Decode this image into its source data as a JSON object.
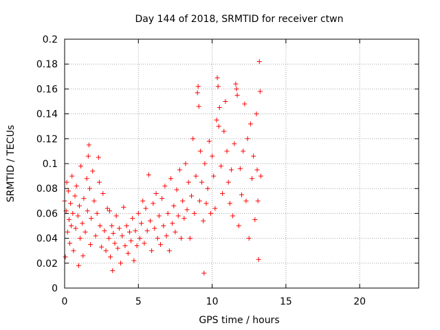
{
  "chart_data": {
    "type": "scatter",
    "title": "Day 144 of 2018, SRMTID for receiver ctwn",
    "xlabel": "GPS time / hours",
    "ylabel": "SRMTID / TECUs",
    "xlim": [
      0,
      24
    ],
    "ylim": [
      0,
      0.2
    ],
    "xticks": [
      0,
      5,
      10,
      15,
      20
    ],
    "xtick_labels": [
      "0",
      "5",
      "10",
      "15",
      "20"
    ],
    "yticks": [
      0,
      0.02,
      0.04,
      0.06,
      0.08,
      0.1,
      0.12,
      0.14,
      0.16,
      0.18,
      0.2
    ],
    "ytick_labels": [
      "0",
      "0.02",
      "0.04",
      "0.06",
      "0.08",
      "0.1",
      "0.12",
      "0.14",
      "0.16",
      "0.18",
      "0.2"
    ],
    "grid": true,
    "marker": "+",
    "color": "#ff0000",
    "series": [
      {
        "name": "SRMTID",
        "points": [
          [
            0.0,
            0.07
          ],
          [
            0.05,
            0.025
          ],
          [
            0.1,
            0.062
          ],
          [
            0.15,
            0.085
          ],
          [
            0.2,
            0.045
          ],
          [
            0.25,
            0.078
          ],
          [
            0.3,
            0.055
          ],
          [
            0.35,
            0.036
          ],
          [
            0.4,
            0.068
          ],
          [
            0.45,
            0.05
          ],
          [
            0.5,
            0.09
          ],
          [
            0.55,
            0.06
          ],
          [
            0.6,
            0.03
          ],
          [
            0.7,
            0.074
          ],
          [
            0.75,
            0.048
          ],
          [
            0.8,
            0.082
          ],
          [
            0.9,
            0.058
          ],
          [
            0.95,
            0.018
          ],
          [
            1.0,
            0.066
          ],
          [
            1.05,
            0.04
          ],
          [
            1.1,
            0.098
          ],
          [
            1.2,
            0.052
          ],
          [
            1.25,
            0.026
          ],
          [
            1.3,
            0.072
          ],
          [
            1.4,
            0.045
          ],
          [
            1.5,
            0.088
          ],
          [
            1.55,
            0.062
          ],
          [
            1.6,
            0.106
          ],
          [
            1.65,
            0.115
          ],
          [
            1.7,
            0.08
          ],
          [
            1.75,
            0.035
          ],
          [
            1.8,
            0.056
          ],
          [
            1.9,
            0.094
          ],
          [
            2.0,
            0.07
          ],
          [
            2.1,
            0.042
          ],
          [
            2.2,
            0.06
          ],
          [
            2.3,
            0.105
          ],
          [
            2.35,
            0.085
          ],
          [
            2.4,
            0.05
          ],
          [
            2.5,
            0.033
          ],
          [
            2.6,
            0.076
          ],
          [
            2.7,
            0.046
          ],
          [
            2.8,
            0.03
          ],
          [
            2.9,
            0.064
          ],
          [
            3.0,
            0.04
          ],
          [
            3.05,
            0.062
          ],
          [
            3.1,
            0.025
          ],
          [
            3.2,
            0.05
          ],
          [
            3.25,
            0.014
          ],
          [
            3.3,
            0.044
          ],
          [
            3.4,
            0.036
          ],
          [
            3.5,
            0.058
          ],
          [
            3.6,
            0.032
          ],
          [
            3.7,
            0.048
          ],
          [
            3.8,
            0.02
          ],
          [
            3.9,
            0.042
          ],
          [
            4.0,
            0.065
          ],
          [
            4.1,
            0.034
          ],
          [
            4.2,
            0.05
          ],
          [
            4.3,
            0.028
          ],
          [
            4.4,
            0.045
          ],
          [
            4.5,
            0.038
          ],
          [
            4.6,
            0.056
          ],
          [
            4.7,
            0.022
          ],
          [
            4.8,
            0.046
          ],
          [
            4.9,
            0.034
          ],
          [
            5.0,
            0.06
          ],
          [
            5.1,
            0.04
          ],
          [
            5.2,
            0.052
          ],
          [
            5.3,
            0.07
          ],
          [
            5.4,
            0.036
          ],
          [
            5.5,
            0.064
          ],
          [
            5.6,
            0.046
          ],
          [
            5.7,
            0.091
          ],
          [
            5.8,
            0.054
          ],
          [
            5.9,
            0.03
          ],
          [
            6.0,
            0.068
          ],
          [
            6.1,
            0.048
          ],
          [
            6.2,
            0.076
          ],
          [
            6.3,
            0.04
          ],
          [
            6.4,
            0.058
          ],
          [
            6.5,
            0.035
          ],
          [
            6.6,
            0.072
          ],
          [
            6.7,
            0.05
          ],
          [
            6.8,
            0.082
          ],
          [
            6.9,
            0.042
          ],
          [
            7.0,
            0.06
          ],
          [
            7.1,
            0.03
          ],
          [
            7.2,
            0.088
          ],
          [
            7.3,
            0.052
          ],
          [
            7.4,
            0.066
          ],
          [
            7.5,
            0.045
          ],
          [
            7.6,
            0.079
          ],
          [
            7.7,
            0.058
          ],
          [
            7.8,
            0.095
          ],
          [
            7.9,
            0.04
          ],
          [
            8.0,
            0.07
          ],
          [
            8.1,
            0.056
          ],
          [
            8.2,
            0.1
          ],
          [
            8.3,
            0.063
          ],
          [
            8.4,
            0.085
          ],
          [
            8.5,
            0.04
          ],
          [
            8.6,
            0.074
          ],
          [
            8.7,
            0.12
          ],
          [
            8.8,
            0.06
          ],
          [
            8.9,
            0.09
          ],
          [
            9.0,
            0.157
          ],
          [
            9.05,
            0.162
          ],
          [
            9.1,
            0.146
          ],
          [
            9.15,
            0.07
          ],
          [
            9.2,
            0.11
          ],
          [
            9.3,
            0.085
          ],
          [
            9.4,
            0.054
          ],
          [
            9.45,
            0.012
          ],
          [
            9.5,
            0.1
          ],
          [
            9.6,
            0.068
          ],
          [
            9.7,
            0.08
          ],
          [
            9.8,
            0.118
          ],
          [
            9.9,
            0.06
          ],
          [
            10.0,
            0.106
          ],
          [
            10.1,
            0.09
          ],
          [
            10.2,
            0.064
          ],
          [
            10.3,
            0.135
          ],
          [
            10.35,
            0.169
          ],
          [
            10.4,
            0.162
          ],
          [
            10.45,
            0.13
          ],
          [
            10.5,
            0.145
          ],
          [
            10.6,
            0.098
          ],
          [
            10.7,
            0.076
          ],
          [
            10.8,
            0.126
          ],
          [
            10.9,
            0.15
          ],
          [
            11.0,
            0.11
          ],
          [
            11.1,
            0.085
          ],
          [
            11.2,
            0.068
          ],
          [
            11.3,
            0.095
          ],
          [
            11.4,
            0.058
          ],
          [
            11.5,
            0.116
          ],
          [
            11.6,
            0.164
          ],
          [
            11.65,
            0.16
          ],
          [
            11.7,
            0.155
          ],
          [
            11.8,
            0.05
          ],
          [
            11.9,
            0.096
          ],
          [
            12.0,
            0.075
          ],
          [
            12.1,
            0.11
          ],
          [
            12.2,
            0.148
          ],
          [
            12.3,
            0.07
          ],
          [
            12.4,
            0.12
          ],
          [
            12.5,
            0.04
          ],
          [
            12.6,
            0.132
          ],
          [
            12.7,
            0.088
          ],
          [
            12.8,
            0.106
          ],
          [
            12.9,
            0.055
          ],
          [
            13.0,
            0.14
          ],
          [
            13.05,
            0.095
          ],
          [
            13.1,
            0.07
          ],
          [
            13.15,
            0.023
          ],
          [
            13.2,
            0.182
          ],
          [
            13.25,
            0.158
          ],
          [
            13.3,
            0.09
          ]
        ]
      }
    ]
  }
}
